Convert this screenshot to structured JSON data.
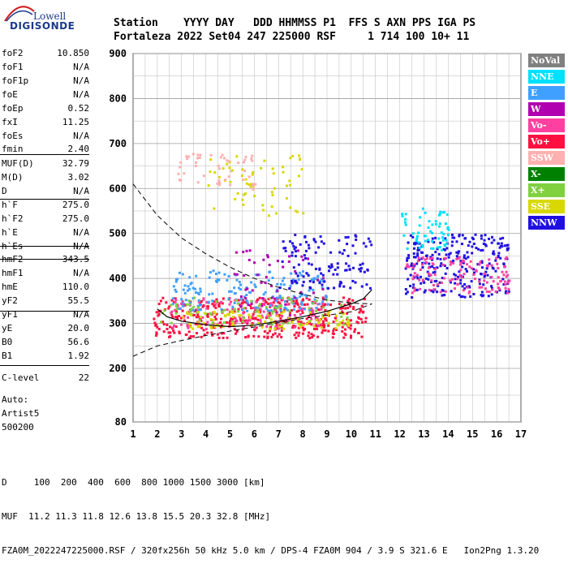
{
  "logo": {
    "line1": "Lowell",
    "line2": "DIGISONDE"
  },
  "header": {
    "row1": "Station    YYYY DAY   DDD HHMMSS P1  FFS S AXN PPS IGA PS",
    "row2": "Fortaleza 2022 Set04 247 225000 RSF     1 714 100 10+ 11"
  },
  "params": [
    {
      "label": "foF2",
      "value": "10.850"
    },
    {
      "label": "foF1",
      "value": "N/A"
    },
    {
      "label": "foF1p",
      "value": "N/A"
    },
    {
      "label": "foE",
      "value": "N/A"
    },
    {
      "label": "foEp",
      "value": "0.52"
    },
    {
      "label": "fxI",
      "value": "11.25"
    },
    {
      "label": "foEs",
      "value": "N/A"
    },
    {
      "label": "fmin",
      "value": "2.40"
    },
    {
      "label": "MUF(D)",
      "value": "32.79"
    },
    {
      "label": "M(D)",
      "value": "3.02"
    },
    {
      "label": "D",
      "value": "N/A"
    },
    {
      "label": "h`F",
      "value": "275.0"
    },
    {
      "label": "h`F2",
      "value": "275.0"
    },
    {
      "label": "h`E",
      "value": "N/A"
    },
    {
      "label": "h`Es",
      "value": "N/A"
    },
    {
      "label": "hmF2",
      "value": "343.5"
    },
    {
      "label": "hmF1",
      "value": "N/A"
    },
    {
      "label": "hmE",
      "value": "110.0"
    },
    {
      "label": "yF2",
      "value": "55.5"
    },
    {
      "label": "yF1",
      "value": "N/A"
    },
    {
      "label": "yE",
      "value": "20.0"
    },
    {
      "label": "B0",
      "value": "56.6"
    },
    {
      "label": "B1",
      "value": "1.92"
    },
    {
      "label": "C-level",
      "value": "22"
    }
  ],
  "auto": {
    "line1": "Auto:",
    "line2": "Artist5",
    "line3": "500200"
  },
  "legend": [
    {
      "label": "NoVal",
      "color": "#808080"
    },
    {
      "label": "NNE",
      "color": "#00e0ff"
    },
    {
      "label": "E",
      "color": "#40a0ff"
    },
    {
      "label": "W",
      "color": "#b000b0"
    },
    {
      "label": "Vo-",
      "color": "#ff40a0"
    },
    {
      "label": "Vo+",
      "color": "#ff1040"
    },
    {
      "label": "SSW",
      "color": "#ffb0b0"
    },
    {
      "label": "X-",
      "color": "#008000"
    },
    {
      "label": "X+",
      "color": "#80d040"
    },
    {
      "label": "SSE",
      "color": "#d8d800"
    },
    {
      "label": "NNW",
      "color": "#2010e0"
    }
  ],
  "bottom": {
    "line1": "D     100  200  400  600  800 1000 1500 3000 [km]",
    "line2": "MUF  11.2 11.3 11.8 12.6 13.8 15.5 20.3 32.8 [MHz]",
    "line3": "FZA0M_2022247225000.RSF / 320fx256h 50 kHz 5.0 km / DPS-4 FZA0M 904 / 3.9 S 321.6 E   Ion2Png 1.3.20"
  },
  "chart_data": {
    "type": "scatter",
    "x": {
      "min": 1,
      "max": 17,
      "ticks": [
        1,
        2,
        3,
        4,
        5,
        6,
        7,
        8,
        9,
        10,
        11,
        12,
        13,
        14,
        15,
        16,
        17
      ]
    },
    "y": {
      "min": 80,
      "max": 900,
      "ticks": [
        80,
        200,
        300,
        400,
        500,
        600,
        700,
        800,
        900
      ]
    },
    "grid": true,
    "legend_position": "right",
    "profile_curve": [
      [
        2.0,
        332
      ],
      [
        2.4,
        315
      ],
      [
        3,
        305
      ],
      [
        4,
        297
      ],
      [
        5,
        293
      ],
      [
        6,
        296
      ],
      [
        7,
        305
      ],
      [
        8,
        315
      ],
      [
        9,
        327
      ],
      [
        10,
        343.5
      ],
      [
        10.5,
        355
      ],
      [
        10.85,
        375
      ]
    ],
    "upper_dashed_curve": [
      [
        1,
        610
      ],
      [
        2,
        540
      ],
      [
        3,
        490
      ],
      [
        4,
        455
      ],
      [
        5,
        425
      ],
      [
        6,
        400
      ],
      [
        7,
        380
      ],
      [
        8,
        365
      ],
      [
        9,
        352
      ],
      [
        10,
        345
      ],
      [
        10.85,
        343.5
      ]
    ],
    "lower_dashed_curve": [
      [
        1,
        227
      ],
      [
        2,
        250
      ],
      [
        3,
        262
      ],
      [
        4,
        273
      ],
      [
        5,
        283
      ],
      [
        6,
        292
      ],
      [
        7,
        302
      ],
      [
        8,
        311
      ],
      [
        9,
        318
      ],
      [
        10,
        326
      ],
      [
        10.85,
        343.5
      ]
    ],
    "clusters": [
      {
        "name": "Vo+",
        "x": [
          1.8,
          10.6
        ],
        "y": [
          270,
          360
        ],
        "n": 420
      },
      {
        "name": "Vo-",
        "x": [
          2.5,
          9
        ],
        "y": [
          290,
          360
        ],
        "n": 120
      },
      {
        "name": "E",
        "x": [
          2.5,
          9
        ],
        "y": [
          330,
          420
        ],
        "n": 180
      },
      {
        "name": "NNW",
        "x": [
          7,
          10.8
        ],
        "y": [
          380,
          500
        ],
        "n": 120
      },
      {
        "name": "NNW",
        "x": [
          12.2,
          16.5
        ],
        "y": [
          360,
          500
        ],
        "n": 260
      },
      {
        "name": "Vo-",
        "x": [
          12.2,
          16.5
        ],
        "y": [
          370,
          450
        ],
        "n": 120
      },
      {
        "name": "NNE",
        "x": [
          12,
          14
        ],
        "y": [
          460,
          560
        ],
        "n": 60
      },
      {
        "name": "SSE",
        "x": [
          4,
          8
        ],
        "y": [
          540,
          680
        ],
        "n": 60
      },
      {
        "name": "SSW",
        "x": [
          2.8,
          6
        ],
        "y": [
          600,
          680
        ],
        "n": 50
      },
      {
        "name": "X+",
        "x": [
          2,
          10
        ],
        "y": [
          300,
          360
        ],
        "n": 80
      },
      {
        "name": "SSE",
        "x": [
          3,
          10
        ],
        "y": [
          290,
          330
        ],
        "n": 100
      },
      {
        "name": "W",
        "x": [
          5,
          9
        ],
        "y": [
          320,
          470
        ],
        "n": 50
      }
    ]
  }
}
